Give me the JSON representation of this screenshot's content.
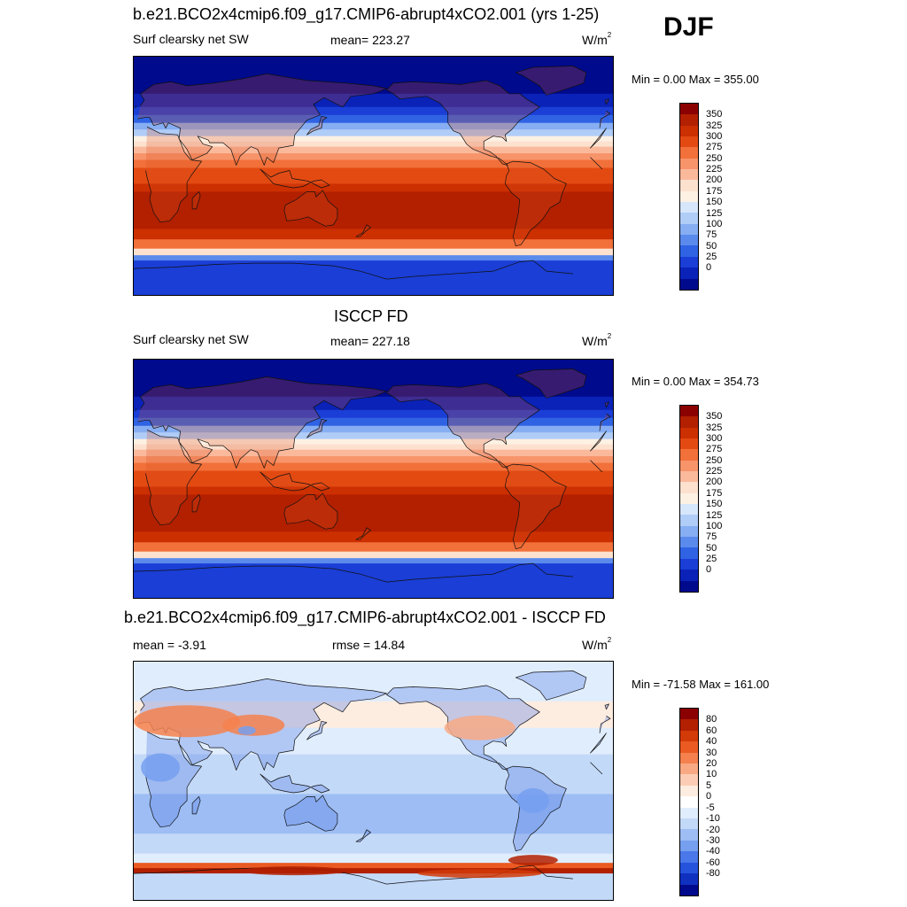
{
  "season": "DJF",
  "panels": [
    {
      "title": "b.e21.BCO2x4cmip6.f09_g17.CMIP6-abrupt4xCO2.001 (yrs 1-25)",
      "left_label": "Surf clearsky net SW",
      "center_label": "mean= 223.27",
      "units": "W/m",
      "units_sup": "2",
      "minmax": "Min =   0.00 Max = 355.00",
      "colorbar_labels": [
        "350",
        "325",
        "300",
        "275",
        "250",
        "225",
        "200",
        "175",
        "150",
        "125",
        "100",
        "75",
        "50",
        "25",
        "0"
      ]
    },
    {
      "title": "ISCCP FD",
      "left_label": "Surf clearsky net SW",
      "center_label": "mean= 227.18",
      "units": "W/m",
      "units_sup": "2",
      "minmax": "Min =   0.00 Max = 354.73",
      "colorbar_labels": [
        "350",
        "325",
        "300",
        "275",
        "250",
        "225",
        "200",
        "175",
        "150",
        "125",
        "100",
        "75",
        "50",
        "25",
        "0"
      ]
    },
    {
      "title": "b.e21.BCO2x4cmip6.f09_g17.CMIP6-abrupt4xCO2.001 - ISCCP FD",
      "left_label": "mean =  -3.91",
      "center_label": "rmse =  14.84",
      "units": "W/m",
      "units_sup": "2",
      "minmax": "Min = -71.58 Max = 161.00",
      "colorbar_labels": [
        "80",
        "60",
        "40",
        "30",
        "20",
        "10",
        "5",
        "0",
        "-5",
        "-10",
        "-20",
        "-30",
        "-40",
        "-60",
        "-80"
      ]
    }
  ],
  "colors": {
    "abs_scale": [
      "#8b0000",
      "#b22000",
      "#cc2f00",
      "#e34a12",
      "#f2703a",
      "#f7946a",
      "#fbb99c",
      "#fde1cf",
      "#fdf1e4",
      "#d6e6fb",
      "#b0cdf7",
      "#87aef2",
      "#5a8aec",
      "#2f63e4",
      "#1a3ed6",
      "#0a22b8",
      "#000a8c"
    ],
    "diff_scale": [
      "#8b0000",
      "#b22000",
      "#d23a08",
      "#ea5a22",
      "#f4814e",
      "#f8a984",
      "#fccdb4",
      "#fdece0",
      "#ffffff",
      "#e0edfc",
      "#c3d9f8",
      "#9dbdf4",
      "#769ff0",
      "#4a78ea",
      "#2553dc",
      "#1030c0",
      "#000a8c"
    ]
  }
}
